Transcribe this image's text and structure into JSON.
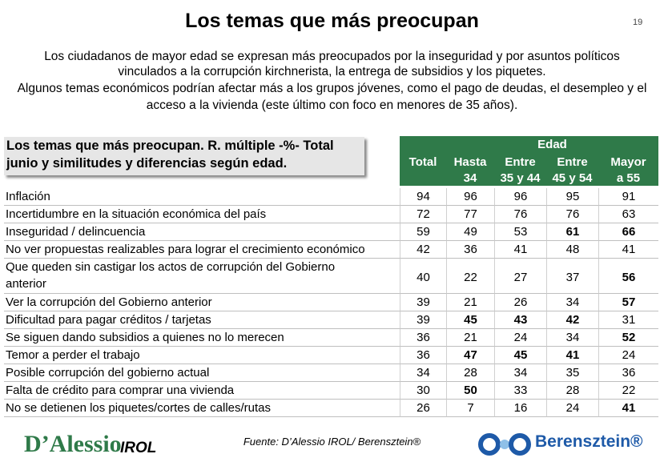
{
  "header": {
    "title": "Los temas que más preocupan",
    "page_number": "19"
  },
  "intro": {
    "lines": [
      "Los ciudadanos de mayor edad se expresan más preocupados por la inseguridad y por asuntos políticos",
      "vinculados a la corrupción kirchnerista, la entrega de subsidios y los piquetes.",
      "Algunos temas económicos podrían afectar más a los grupos jóvenes, como el pago de deudas, el desempleo y el",
      "acceso a la vivienda (este último con foco en menores de 35 años)."
    ]
  },
  "table": {
    "caption": [
      "Los temas que más preocupan. R. múltiple -%- Total",
      "junio y similitudes y diferencias según edad."
    ],
    "group_header": "Edad",
    "columns": [
      [
        "Total"
      ],
      [
        "Hasta",
        "34"
      ],
      [
        "Entre",
        "35 y 44"
      ],
      [
        "Entre",
        "45 y 54"
      ],
      [
        "Mayor",
        "a 55"
      ]
    ],
    "rows": [
      {
        "label": [
          "Inflación"
        ],
        "values": [
          94,
          96,
          96,
          95,
          91
        ],
        "bold": [
          false,
          false,
          false,
          false,
          false
        ]
      },
      {
        "label": [
          "Incertidumbre en la situación económica del país"
        ],
        "values": [
          72,
          77,
          76,
          76,
          63
        ],
        "bold": [
          false,
          false,
          false,
          false,
          false
        ]
      },
      {
        "label": [
          "Inseguridad / delincuencia"
        ],
        "values": [
          59,
          49,
          53,
          61,
          66
        ],
        "bold": [
          false,
          false,
          false,
          true,
          true
        ]
      },
      {
        "label": [
          "No ver propuestas realizables para lograr el crecimiento económico"
        ],
        "values": [
          42,
          36,
          41,
          48,
          41
        ],
        "bold": [
          false,
          false,
          false,
          false,
          false
        ]
      },
      {
        "label": [
          "Que queden sin castigar los actos de corrupción del Gobierno",
          "anterior"
        ],
        "values": [
          40,
          22,
          27,
          37,
          56
        ],
        "bold": [
          false,
          false,
          false,
          false,
          true
        ]
      },
      {
        "label": [
          "Ver la corrupción del Gobierno anterior"
        ],
        "values": [
          39,
          21,
          26,
          34,
          57
        ],
        "bold": [
          false,
          false,
          false,
          false,
          true
        ]
      },
      {
        "label": [
          "Dificultad para pagar créditos / tarjetas"
        ],
        "values": [
          39,
          45,
          43,
          42,
          31
        ],
        "bold": [
          false,
          true,
          true,
          true,
          false
        ]
      },
      {
        "label": [
          "Se siguen dando subsidios a quienes no lo merecen"
        ],
        "values": [
          36,
          21,
          24,
          34,
          52
        ],
        "bold": [
          false,
          false,
          false,
          false,
          true
        ]
      },
      {
        "label": [
          "Temor a perder el trabajo"
        ],
        "values": [
          36,
          47,
          45,
          41,
          24
        ],
        "bold": [
          false,
          true,
          true,
          true,
          false
        ]
      },
      {
        "label": [
          "Posible corrupción del gobierno actual"
        ],
        "values": [
          34,
          28,
          34,
          35,
          36
        ],
        "bold": [
          false,
          false,
          false,
          false,
          false
        ]
      },
      {
        "label": [
          "Falta de crédito para comprar una vivienda"
        ],
        "values": [
          30,
          50,
          33,
          28,
          22
        ],
        "bold": [
          false,
          true,
          false,
          false,
          false
        ]
      },
      {
        "label": [
          "No se detienen los  piquetes/cortes de calles/rutas"
        ],
        "values": [
          26,
          7,
          16,
          24,
          41
        ],
        "bold": [
          false,
          false,
          false,
          false,
          true
        ]
      }
    ]
  },
  "footer": {
    "source": "Fuente: D’Alessio IROL/ Berensztein®",
    "logo_left": [
      "D’Alessio",
      "IROL"
    ],
    "logo_right": "Berensztein®"
  }
}
